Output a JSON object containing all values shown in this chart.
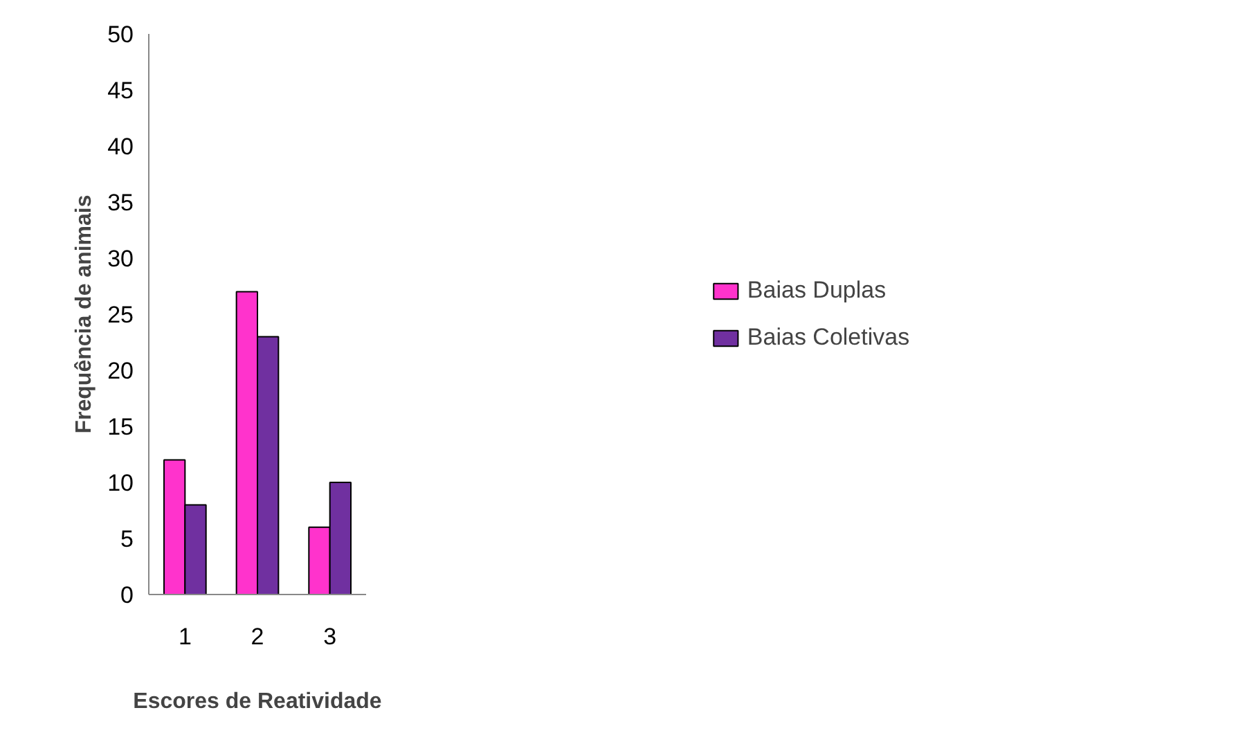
{
  "chart_data": {
    "type": "bar",
    "xlabel": "Escores de Reatividade",
    "ylabel": "Frequência de animais",
    "categories": [
      "1",
      "2",
      "3"
    ],
    "series": [
      {
        "name": "Baias Duplas",
        "color": "#ff33cc",
        "values": [
          12,
          27,
          6
        ]
      },
      {
        "name": "Baias Coletivas",
        "color": "#7030a0",
        "values": [
          8,
          23,
          10
        ]
      }
    ],
    "ylim": [
      0,
      50
    ],
    "yticks": [
      0,
      5,
      10,
      15,
      20,
      25,
      30,
      35,
      40,
      45,
      50
    ],
    "legend": "right"
  }
}
